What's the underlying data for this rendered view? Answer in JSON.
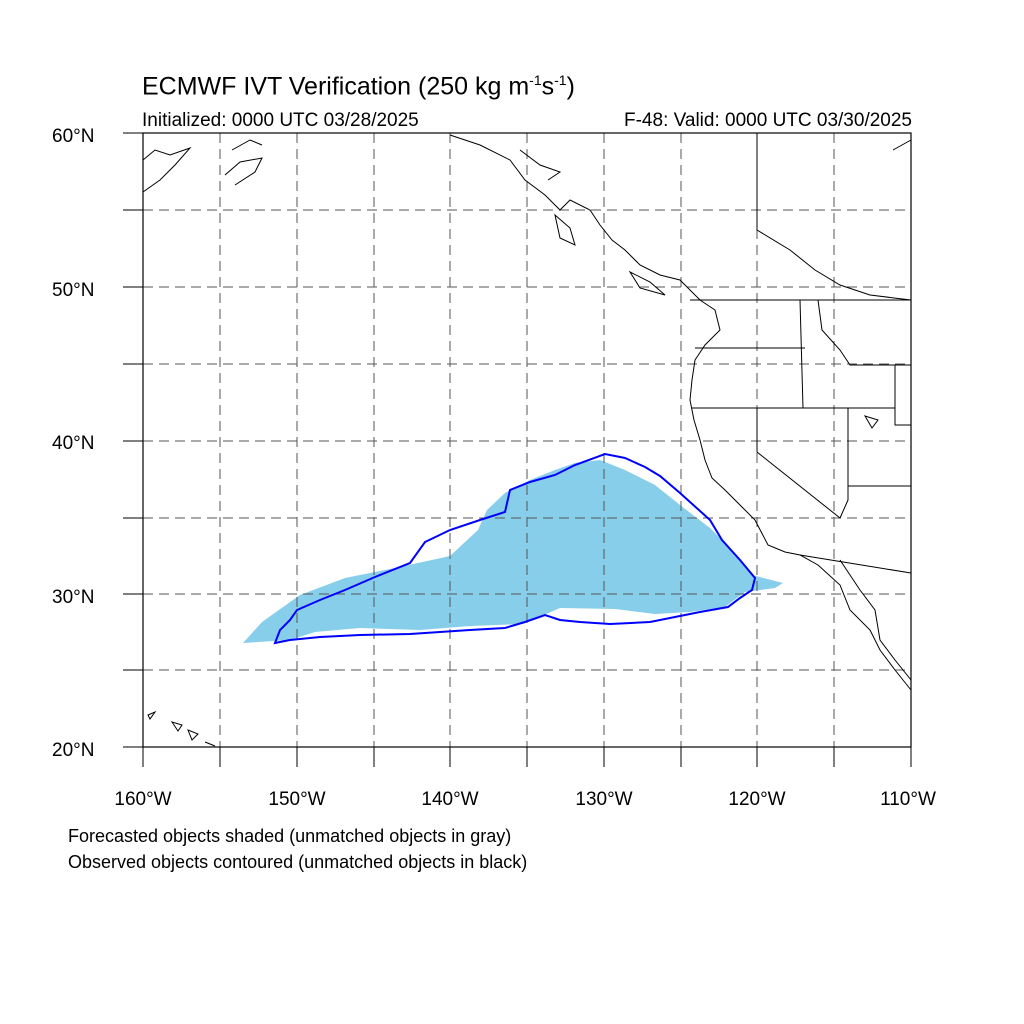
{
  "title": {
    "main": "ECMWF IVT Verification (250 kg m",
    "exp1": "-1",
    "mid": "s",
    "exp2": "-1",
    "end": ")"
  },
  "subtitle": {
    "initialized": "Initialized: 0000 UTC 03/28/2025",
    "valid": "F-48: Valid: 0000 UTC 03/30/2025"
  },
  "map": {
    "lon_range": [
      -160,
      -110
    ],
    "lat_range": [
      20,
      60
    ],
    "lat_labels": [
      "20°N",
      "30°N",
      "40°N",
      "50°N",
      "60°N"
    ],
    "lon_labels": [
      "160°W",
      "150°W",
      "140°W",
      "130°W",
      "120°W",
      "110°W"
    ],
    "grid": "dashed every 5 degrees",
    "colors": {
      "forecast_fill": "#87ceeb",
      "observed_contour": "#0000ff",
      "coastline": "#000000"
    }
  },
  "legend": {
    "line1": "Forecasted objects shaded (unmatched objects in gray)",
    "line2": "Observed objects contoured (unmatched objects in black)"
  }
}
